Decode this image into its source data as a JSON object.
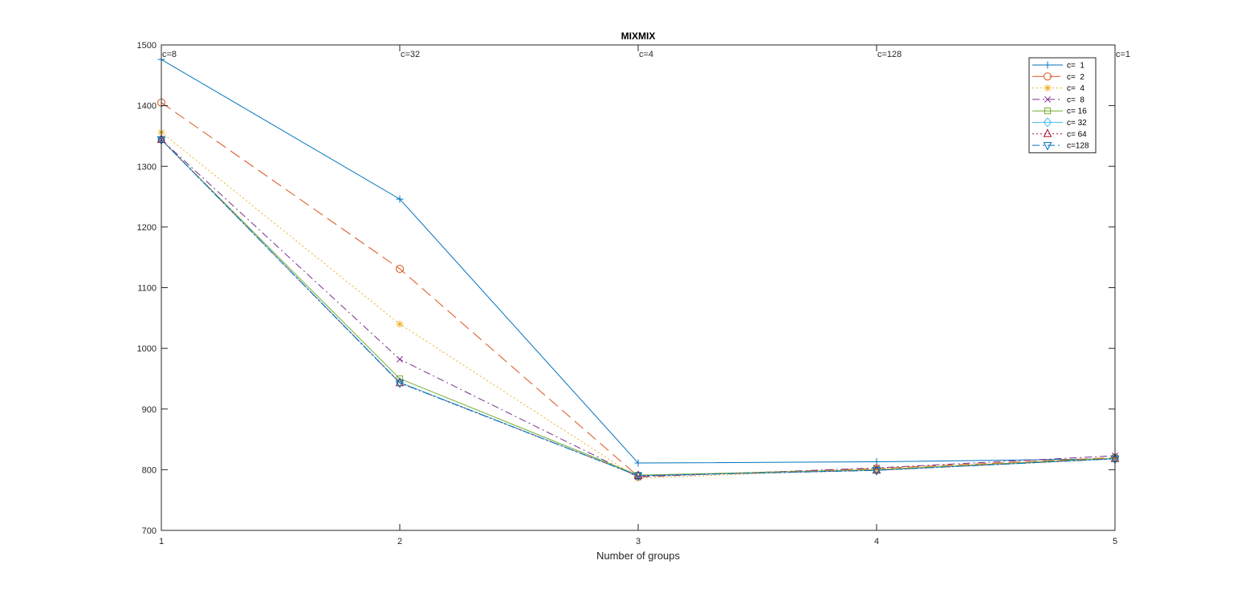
{
  "chart_data": {
    "type": "line",
    "title": "MIXMIX",
    "xlabel": "Number of groups",
    "ylabel": "",
    "x": [
      1,
      2,
      3,
      4,
      5
    ],
    "xlim": [
      1,
      5
    ],
    "ylim": [
      700,
      1500
    ],
    "xticks": [
      "1",
      "2",
      "3",
      "4",
      "5"
    ],
    "yticks": [
      "700",
      "800",
      "900",
      "1000",
      "1100",
      "1200",
      "1300",
      "1400",
      "1500"
    ],
    "grid": false,
    "legend_position": "top-right",
    "annotations": [
      {
        "x": 1,
        "text": "c=8"
      },
      {
        "x": 2,
        "text": "c=32"
      },
      {
        "x": 3,
        "text": "c=4"
      },
      {
        "x": 4,
        "text": "c=128"
      },
      {
        "x": 5,
        "text": "c=1"
      }
    ],
    "series": [
      {
        "name": "c=  1",
        "values": [
          1476,
          1246,
          811,
          813,
          818
        ],
        "color": "#0072BD",
        "dash": "solid",
        "marker": "plus"
      },
      {
        "name": "c=  2",
        "values": [
          1405,
          1131,
          789,
          802,
          820
        ],
        "color": "#D95319",
        "dash": "longdash",
        "marker": "circle"
      },
      {
        "name": "c=  4",
        "values": [
          1356,
          1040,
          786,
          801,
          819
        ],
        "color": "#EDB120",
        "dash": "dotted",
        "marker": "asterisk"
      },
      {
        "name": "c=  8",
        "values": [
          1344,
          982,
          788,
          803,
          823
        ],
        "color": "#7E2F8E",
        "dash": "dashdot",
        "marker": "x"
      },
      {
        "name": "c= 16",
        "values": [
          1344,
          950,
          791,
          800,
          819
        ],
        "color": "#77AC30",
        "dash": "solid",
        "marker": "square"
      },
      {
        "name": "c= 32",
        "values": [
          1344,
          944,
          790,
          799,
          818
        ],
        "color": "#4DBEEE",
        "dash": "solid",
        "marker": "diamond"
      },
      {
        "name": "c= 64",
        "values": [
          1344,
          943,
          790,
          799,
          818
        ],
        "color": "#A2142F",
        "dash": "dotted",
        "marker": "triangle-up"
      },
      {
        "name": "c=128",
        "values": [
          1344,
          943,
          790,
          799,
          818
        ],
        "color": "#0072BD",
        "dash": "dashdot",
        "marker": "triangle-down"
      }
    ]
  }
}
